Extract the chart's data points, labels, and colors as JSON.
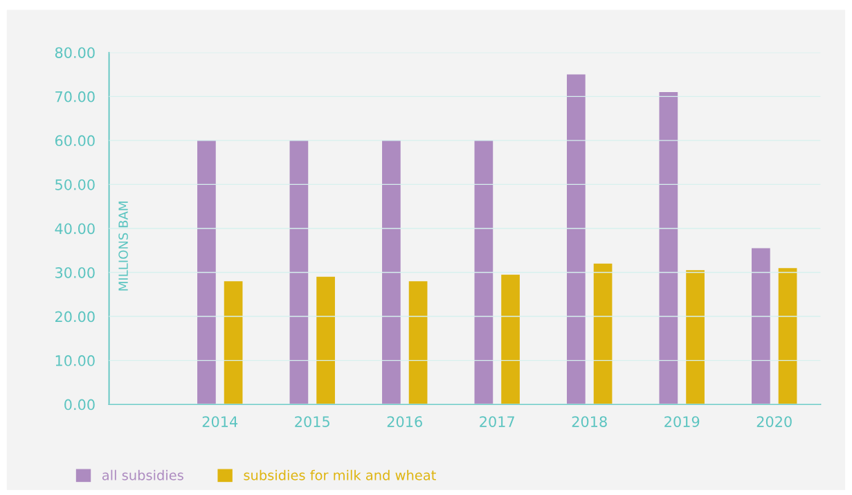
{
  "chart_data": {
    "type": "bar",
    "ylabel": "MILLIONS BAM",
    "categories": [
      "2014",
      "2015",
      "2016",
      "2017",
      "2018",
      "2019",
      "2020"
    ],
    "series": [
      {
        "name": "all subsidies",
        "color": "#ad8bc0",
        "values": [
          60,
          60,
          60,
          60,
          75,
          71,
          35.5
        ]
      },
      {
        "name": "subsidies for milk and wheat",
        "color": "#deb40f",
        "values": [
          28,
          29,
          28,
          29.5,
          32,
          30.5,
          31
        ]
      }
    ],
    "ylim": [
      0,
      80
    ],
    "yticks": [
      {
        "value": 0,
        "label": "0.00"
      },
      {
        "value": 10,
        "label": "10.00"
      },
      {
        "value": 20,
        "label": "20.00"
      },
      {
        "value": 30,
        "label": "30.00"
      },
      {
        "value": 40,
        "label": "40.00"
      },
      {
        "value": 50,
        "label": "50.00"
      },
      {
        "value": 60,
        "label": "60.00"
      },
      {
        "value": 70,
        "label": "70.00"
      },
      {
        "value": 80,
        "label": "80.00"
      }
    ],
    "grid": "y",
    "legend": "bottom left"
  }
}
